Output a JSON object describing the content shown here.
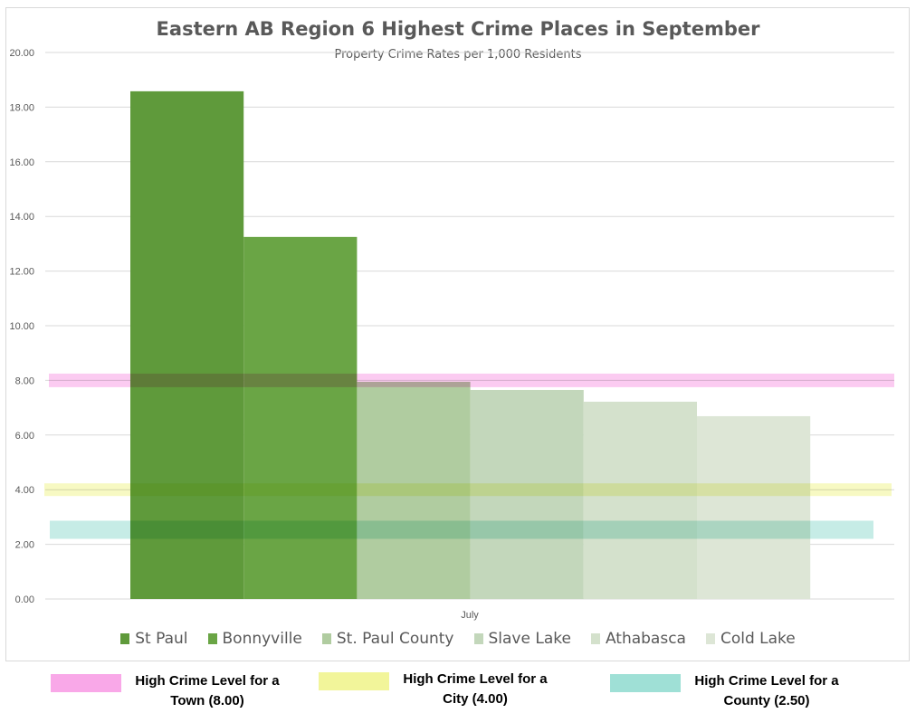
{
  "chart_data": {
    "type": "bar",
    "title": "Eastern AB Region 6 Highest Crime Places in September",
    "subtitle": "Property Crime Rates per 1,000 Residents",
    "categories": [
      "July"
    ],
    "series": [
      {
        "name": "St Paul",
        "values": [
          18.58
        ],
        "color": "#5f9a3b"
      },
      {
        "name": "Bonnyville",
        "values": [
          13.25
        ],
        "color": "#6aa545"
      },
      {
        "name": "St. Paul County",
        "values": [
          7.95
        ],
        "color": "#b0cca0"
      },
      {
        "name": "Slave Lake",
        "values": [
          7.65
        ],
        "color": "#c3d7bb"
      },
      {
        "name": "Athabasca",
        "values": [
          7.22
        ],
        "color": "#d4e1cc"
      },
      {
        "name": "Cold Lake",
        "values": [
          6.69
        ],
        "color": "#dde6d6"
      }
    ],
    "reference_bands": [
      {
        "label": "High Crime Level for a Town (8.00)",
        "value": 8.0,
        "color": "#f9a8e8"
      },
      {
        "label": "High Crime Level for a City (4.00)",
        "value": 4.0,
        "color": "#f2f59a"
      },
      {
        "label": "High Crime Level for a County (2.50)",
        "value": 2.5,
        "color": "#9fe0d6"
      }
    ],
    "ylim": [
      0,
      20
    ],
    "yticks": [
      "0.00",
      "2.00",
      "4.00",
      "6.00",
      "8.00",
      "10.00",
      "12.00",
      "14.00",
      "16.00",
      "18.00",
      "20.00"
    ],
    "grid": true,
    "legend": "bottom"
  }
}
